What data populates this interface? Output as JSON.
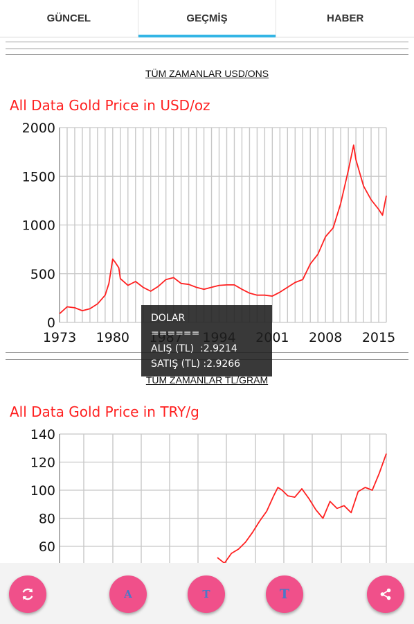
{
  "tabs": [
    {
      "label": "GÜNCEL"
    },
    {
      "label": "GEÇMİŞ"
    },
    {
      "label": "HABER"
    }
  ],
  "section1": {
    "heading": "TÜM ZAMANLAR USD/ONS"
  },
  "section2": {
    "heading": "TÜM ZAMANLAR TL/GRAM"
  },
  "tooltip": {
    "title": "DOLAR",
    "divider": "======",
    "buy": "ALIŞ (TL)  :2.9214",
    "sell": "SATIŞ (TL) :2.9266"
  },
  "toolbar": {
    "buttons": [
      {
        "icon": "refresh-icon",
        "text": ""
      },
      {
        "icon": "font-a-icon",
        "text": "A"
      },
      {
        "icon": "font-t-small-icon",
        "text": "T"
      },
      {
        "icon": "font-t-large-icon",
        "text": "T"
      },
      {
        "icon": "share-icon",
        "text": ""
      }
    ]
  },
  "colors": {
    "line": "#ff2020",
    "accent": "#33b5e5",
    "fab": "#f0508a",
    "grid": "#c8c8c8"
  },
  "chart_data": [
    {
      "type": "line",
      "title": "All Data Gold Price in USD/oz",
      "xlabel": "",
      "ylabel": "",
      "xlim": [
        1973,
        2016
      ],
      "ylim": [
        0,
        2000
      ],
      "xticks": [
        "1973",
        "1980",
        "1987",
        "1994",
        "2001",
        "2008",
        "2015"
      ],
      "yticks": [
        "0",
        "500",
        "1000",
        "1500",
        "2000"
      ],
      "grid": true,
      "x": [
        1973,
        1974,
        1975,
        1976,
        1977,
        1978,
        1979,
        1979.5,
        1980,
        1980.3,
        1980.8,
        1981,
        1982,
        1983,
        1984,
        1985,
        1986,
        1987,
        1988,
        1989,
        1990,
        1991,
        1992,
        1993,
        1994,
        1995,
        1996,
        1997,
        1998,
        1999,
        2000,
        2001,
        2002,
        2003,
        2004,
        2005,
        2006,
        2007,
        2008,
        2009,
        2010,
        2011,
        2011.7,
        2012,
        2013,
        2014,
        2015,
        2015.5,
        2016
      ],
      "y": [
        90,
        160,
        150,
        120,
        140,
        190,
        280,
        400,
        650,
        620,
        560,
        450,
        380,
        420,
        360,
        320,
        370,
        440,
        460,
        400,
        390,
        360,
        340,
        360,
        380,
        385,
        385,
        340,
        300,
        280,
        280,
        270,
        310,
        360,
        410,
        440,
        600,
        700,
        880,
        970,
        1220,
        1560,
        1820,
        1670,
        1400,
        1260,
        1160,
        1100,
        1300
      ]
    },
    {
      "type": "line",
      "title": "All Data Gold Price in TRY/g",
      "xlabel": "",
      "ylabel": "",
      "ylim": [
        40,
        140
      ],
      "yticks": [
        "60",
        "80",
        "100",
        "120",
        "140"
      ],
      "grid": true,
      "x": [
        2007,
        2007.5,
        2008,
        2008.5,
        2009,
        2009.5,
        2010,
        2010.5,
        2011,
        2011.3,
        2011.6,
        2012,
        2012.5,
        2013,
        2013.5,
        2014,
        2014.5,
        2015,
        2015.5,
        2016,
        2016.5,
        2017,
        2017.5,
        2018,
        2018.5,
        2019
      ],
      "y": [
        52,
        48,
        55,
        58,
        63,
        70,
        78,
        85,
        96,
        102,
        100,
        96,
        95,
        101,
        94,
        86,
        80,
        92,
        87,
        89,
        84,
        99,
        102,
        100,
        112,
        126
      ]
    }
  ]
}
